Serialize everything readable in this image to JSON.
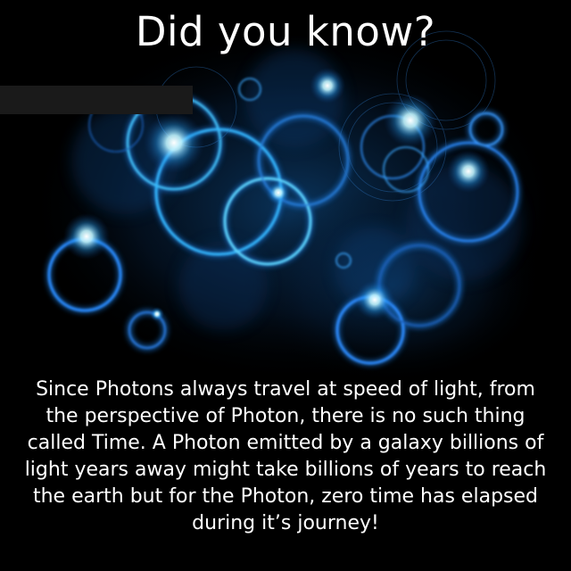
{
  "title": "Did you know?",
  "caption_lines": [
    "Since Photons always travel at speed of light, from",
    "the perspective of Photon, there is no such thing",
    "called Time. A Photon emitted by a galaxy billions of",
    "light years away might take billions of years to reach",
    "the earth but for the Photon, zero time has elapsed",
    "during it’s journey!"
  ],
  "colors": {
    "background": "#000000",
    "ring_blue": "#1e7be0",
    "ring_cyan": "#3fc6ff",
    "glow_white": "#e8fbff",
    "text": "#ffffff"
  }
}
